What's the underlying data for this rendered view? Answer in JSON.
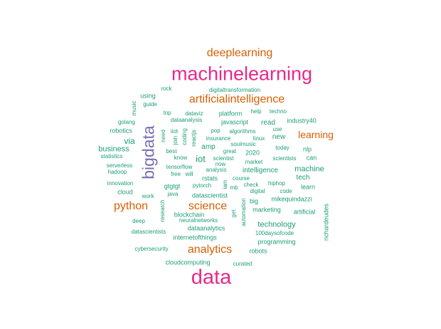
{
  "colors": {
    "pink": "#e7298a",
    "orange": "#d95f02",
    "purple": "#7570b3",
    "teal": "#1b9e77"
  },
  "words": [
    {
      "text": "data",
      "color": "pink"
    },
    {
      "text": "machinelearning",
      "color": "pink"
    },
    {
      "text": "bigdata",
      "color": "purple"
    },
    {
      "text": "deeplearning",
      "color": "orange"
    },
    {
      "text": "artificialintelligence",
      "color": "orange"
    },
    {
      "text": "python",
      "color": "orange"
    },
    {
      "text": "science",
      "color": "orange"
    },
    {
      "text": "analytics",
      "color": "orange"
    },
    {
      "text": "learning",
      "color": "orange"
    },
    {
      "text": "iot",
      "color": "teal"
    },
    {
      "text": "via",
      "color": "teal"
    },
    {
      "text": "business",
      "color": "teal"
    },
    {
      "text": "technology",
      "color": "teal"
    },
    {
      "text": "machine",
      "color": "teal"
    },
    {
      "text": "intelligence",
      "color": "teal"
    },
    {
      "text": "read",
      "color": "teal"
    },
    {
      "text": "new",
      "color": "teal"
    },
    {
      "text": "tech",
      "color": "teal"
    },
    {
      "text": "amp",
      "color": "teal"
    },
    {
      "text": "programming",
      "color": "teal"
    },
    {
      "text": "marketing",
      "color": "teal"
    },
    {
      "text": "artificial",
      "color": "teal"
    },
    {
      "text": "dataanalytics",
      "color": "teal"
    },
    {
      "text": "datascientist",
      "color": "teal"
    },
    {
      "text": "mikequindazzi",
      "color": "teal"
    },
    {
      "text": "internetofthings",
      "color": "teal"
    },
    {
      "text": "robotics",
      "color": "teal"
    },
    {
      "text": "cloudcomputing",
      "color": "teal"
    },
    {
      "text": "javascript",
      "color": "teal"
    },
    {
      "text": "platform",
      "color": "teal"
    },
    {
      "text": "industry40",
      "color": "teal"
    },
    {
      "text": "nlp",
      "color": "teal"
    },
    {
      "text": "can",
      "color": "teal"
    },
    {
      "text": "learn",
      "color": "teal"
    },
    {
      "text": "robots",
      "color": "teal"
    },
    {
      "text": "big",
      "color": "teal"
    },
    {
      "text": "2020",
      "color": "teal"
    },
    {
      "text": "using",
      "color": "teal"
    },
    {
      "text": "cloud",
      "color": "teal"
    },
    {
      "text": "gtgtgt",
      "color": "teal"
    },
    {
      "text": "rstats",
      "color": "teal"
    },
    {
      "text": "blockchain",
      "color": "teal"
    },
    {
      "text": "deep",
      "color": "teal"
    },
    {
      "text": "digitaltransformation",
      "color": "teal"
    },
    {
      "text": "rock",
      "color": "teal"
    },
    {
      "text": "guide",
      "color": "teal"
    },
    {
      "text": "top",
      "color": "teal"
    },
    {
      "text": "dataviz",
      "color": "teal"
    },
    {
      "text": "help",
      "color": "teal"
    },
    {
      "text": "techno",
      "color": "teal"
    },
    {
      "text": "golang",
      "color": "teal"
    },
    {
      "text": "dataanalysis",
      "color": "teal"
    },
    {
      "text": "pop",
      "color": "teal"
    },
    {
      "text": "algorithms",
      "color": "teal"
    },
    {
      "text": "use",
      "color": "teal"
    },
    {
      "text": "iiot",
      "color": "teal"
    },
    {
      "text": "insurance",
      "color": "teal"
    },
    {
      "text": "linux",
      "color": "teal"
    },
    {
      "text": "soulmusic",
      "color": "teal"
    },
    {
      "text": "today",
      "color": "teal"
    },
    {
      "text": "statistics",
      "color": "teal"
    },
    {
      "text": "best",
      "color": "teal"
    },
    {
      "text": "great",
      "color": "teal"
    },
    {
      "text": "know",
      "color": "teal"
    },
    {
      "text": "scientist",
      "color": "teal"
    },
    {
      "text": "market",
      "color": "teal"
    },
    {
      "text": "scientists",
      "color": "teal"
    },
    {
      "text": "serverless",
      "color": "teal"
    },
    {
      "text": "tensorflow",
      "color": "teal"
    },
    {
      "text": "now",
      "color": "teal"
    },
    {
      "text": "hadoop",
      "color": "teal"
    },
    {
      "text": "free",
      "color": "teal"
    },
    {
      "text": "will",
      "color": "teal"
    },
    {
      "text": "analysis",
      "color": "teal"
    },
    {
      "text": "course",
      "color": "teal"
    },
    {
      "text": "innovation",
      "color": "teal"
    },
    {
      "text": "pytorch",
      "color": "teal"
    },
    {
      "text": "mb",
      "color": "teal"
    },
    {
      "text": "check",
      "color": "teal"
    },
    {
      "text": "hiphop",
      "color": "teal"
    },
    {
      "text": "digital",
      "color": "teal"
    },
    {
      "text": "code",
      "color": "teal"
    },
    {
      "text": "work",
      "color": "teal"
    },
    {
      "text": "java",
      "color": "teal"
    },
    {
      "text": "neuralnetworks",
      "color": "teal"
    },
    {
      "text": "datascientists",
      "color": "teal"
    },
    {
      "text": "100daysofcode",
      "color": "teal"
    },
    {
      "text": "cybersecurity",
      "color": "teal"
    },
    {
      "text": "curated",
      "color": "teal"
    },
    {
      "text": "music",
      "color": "teal"
    },
    {
      "text": "need",
      "color": "teal"
    },
    {
      "text": "join",
      "color": "teal"
    },
    {
      "text": "coding",
      "color": "teal"
    },
    {
      "text": "reactjs",
      "color": "teal"
    },
    {
      "text": "research",
      "color": "teal"
    },
    {
      "text": "iam",
      "color": "teal"
    },
    {
      "text": "get",
      "color": "teal"
    },
    {
      "text": "automation",
      "color": "teal"
    },
    {
      "text": "richardeudes",
      "color": "teal"
    }
  ]
}
